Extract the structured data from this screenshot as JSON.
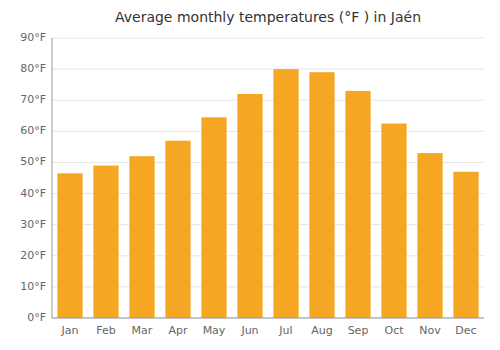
{
  "chart_data": {
    "type": "bar",
    "title": "Average monthly temperatures (°F ) in Jaén",
    "categories": [
      "Jan",
      "Feb",
      "Mar",
      "Apr",
      "May",
      "Jun",
      "Jul",
      "Aug",
      "Sep",
      "Oct",
      "Nov",
      "Dec"
    ],
    "values": [
      46.5,
      49,
      52,
      57,
      64.5,
      72,
      80,
      79,
      73,
      62.5,
      53,
      47
    ],
    "color": "#f5a623",
    "ylim": [
      0,
      90
    ],
    "yticks": [
      {
        "value": 0,
        "label": "0°F"
      },
      {
        "value": 10,
        "label": "10°F"
      },
      {
        "value": 20,
        "label": "20°F"
      },
      {
        "value": 30,
        "label": "30°F"
      },
      {
        "value": 40,
        "label": "40°F"
      },
      {
        "value": 50,
        "label": "50°F"
      },
      {
        "value": 60,
        "label": "60°F"
      },
      {
        "value": 70,
        "label": "70°F"
      },
      {
        "value": 80,
        "label": "80°F"
      },
      {
        "value": 90,
        "label": "90°F"
      }
    ],
    "grid": true
  }
}
